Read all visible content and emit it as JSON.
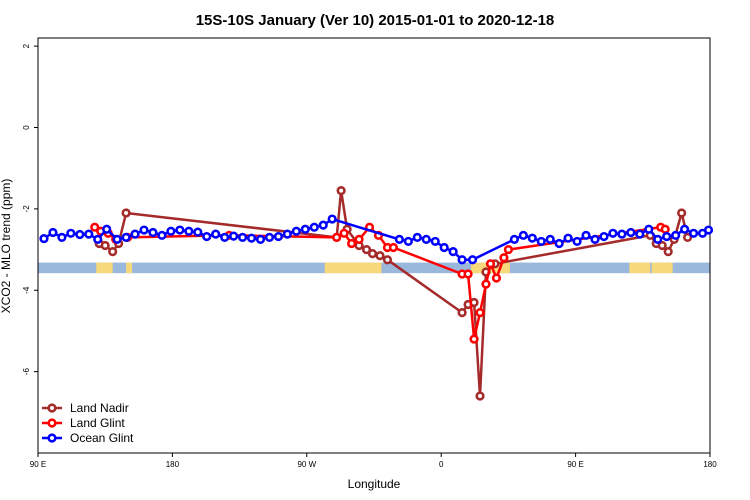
{
  "chart_data": {
    "type": "line",
    "title": "15S-10S January (Ver 10)   2015-01-01 to 2020-12-18",
    "xlabel": "Longitude",
    "ylabel": "XCO2 - MLO trend (ppm)",
    "xlim": [
      90,
      540
    ],
    "ylim": [
      -8,
      2.2
    ],
    "x_ticks": [
      {
        "value": 90,
        "label": "90 E"
      },
      {
        "value": 180,
        "label": "180"
      },
      {
        "value": 270,
        "label": "90 W"
      },
      {
        "value": 360,
        "label": "0"
      },
      {
        "value": 450,
        "label": "90 E"
      },
      {
        "value": 540,
        "label": "180"
      }
    ],
    "y_ticks": [
      {
        "value": 2,
        "label": "2"
      },
      {
        "value": 0,
        "label": "0"
      },
      {
        "value": -2,
        "label": "-2"
      },
      {
        "value": -4,
        "label": "-4"
      },
      {
        "value": -6,
        "label": "-6"
      }
    ],
    "land_fraction_band": {
      "color": "#9ab7dc",
      "land_color": "#f7d87a",
      "y_top": -3.32,
      "y_bottom": -3.58,
      "land_ranges": [
        [
          129,
          140
        ],
        [
          149,
          153
        ],
        [
          282,
          320
        ],
        [
          380,
          406
        ],
        [
          401,
          406
        ],
        [
          486,
          500
        ],
        [
          501,
          515
        ]
      ]
    },
    "legend": {
      "position": "bottom-left"
    },
    "series": [
      {
        "name": "Land Nadir",
        "color": "#a52a2a",
        "x": [
          131,
          135,
          140,
          144,
          149,
          290,
          293,
          297,
          305,
          310,
          314,
          319,
          324,
          374,
          378,
          382,
          386,
          390,
          396,
          500,
          504,
          508,
          512,
          516,
          521,
          525
        ],
        "y": [
          -2.85,
          -2.9,
          -3.05,
          -2.85,
          -2.1,
          -2.7,
          -1.55,
          -2.5,
          -2.9,
          -3.0,
          -3.1,
          -3.15,
          -3.25,
          -4.55,
          -4.35,
          -4.3,
          -6.6,
          -3.55,
          -3.35,
          -2.65,
          -2.85,
          -2.9,
          -3.05,
          -2.75,
          -2.1,
          -2.7
        ]
      },
      {
        "name": "Land Glint",
        "color": "#ff0000",
        "x": [
          128,
          132,
          137,
          142,
          150,
          218,
          290,
          295,
          300,
          305,
          312,
          318,
          324,
          328,
          374,
          378,
          382,
          386,
          390,
          393,
          397,
          402,
          405,
          507,
          510
        ],
        "y": [
          -2.45,
          -2.55,
          -2.6,
          -2.75,
          -2.7,
          -2.65,
          -2.7,
          -2.6,
          -2.85,
          -2.75,
          -2.45,
          -2.65,
          -2.95,
          -2.95,
          -3.6,
          -3.6,
          -5.2,
          -4.55,
          -3.85,
          -3.35,
          -3.7,
          -3.2,
          -3.0,
          -2.45,
          -2.5
        ]
      },
      {
        "name": "Ocean Glint",
        "color": "#0000ff",
        "x": [
          94,
          100,
          106,
          112,
          118,
          124,
          130,
          136,
          143,
          149,
          155,
          161,
          167,
          173,
          179,
          185,
          191,
          197,
          203,
          209,
          215,
          221,
          227,
          233,
          239,
          245,
          251,
          257,
          263,
          269,
          275,
          281,
          287,
          332,
          338,
          344,
          350,
          356,
          362,
          368,
          374,
          381,
          409,
          415,
          421,
          427,
          433,
          439,
          445,
          451,
          457,
          463,
          469,
          475,
          481,
          487,
          493,
          499,
          505,
          511,
          517,
          523,
          529,
          535,
          539
        ],
        "y": [
          -2.73,
          -2.58,
          -2.7,
          -2.6,
          -2.63,
          -2.62,
          -2.75,
          -2.5,
          -2.75,
          -2.7,
          -2.62,
          -2.52,
          -2.58,
          -2.65,
          -2.55,
          -2.52,
          -2.55,
          -2.57,
          -2.68,
          -2.62,
          -2.7,
          -2.67,
          -2.7,
          -2.72,
          -2.75,
          -2.7,
          -2.68,
          -2.62,
          -2.55,
          -2.5,
          -2.45,
          -2.4,
          -2.25,
          -2.75,
          -2.8,
          -2.7,
          -2.75,
          -2.8,
          -2.95,
          -3.05,
          -3.25,
          -3.25,
          -2.75,
          -2.65,
          -2.72,
          -2.8,
          -2.75,
          -2.85,
          -2.72,
          -2.8,
          -2.65,
          -2.75,
          -2.68,
          -2.6,
          -2.62,
          -2.58,
          -2.62,
          -2.5,
          -2.75,
          -2.68,
          -2.65,
          -2.5,
          -2.6,
          -2.6,
          -2.52
        ]
      }
    ]
  }
}
